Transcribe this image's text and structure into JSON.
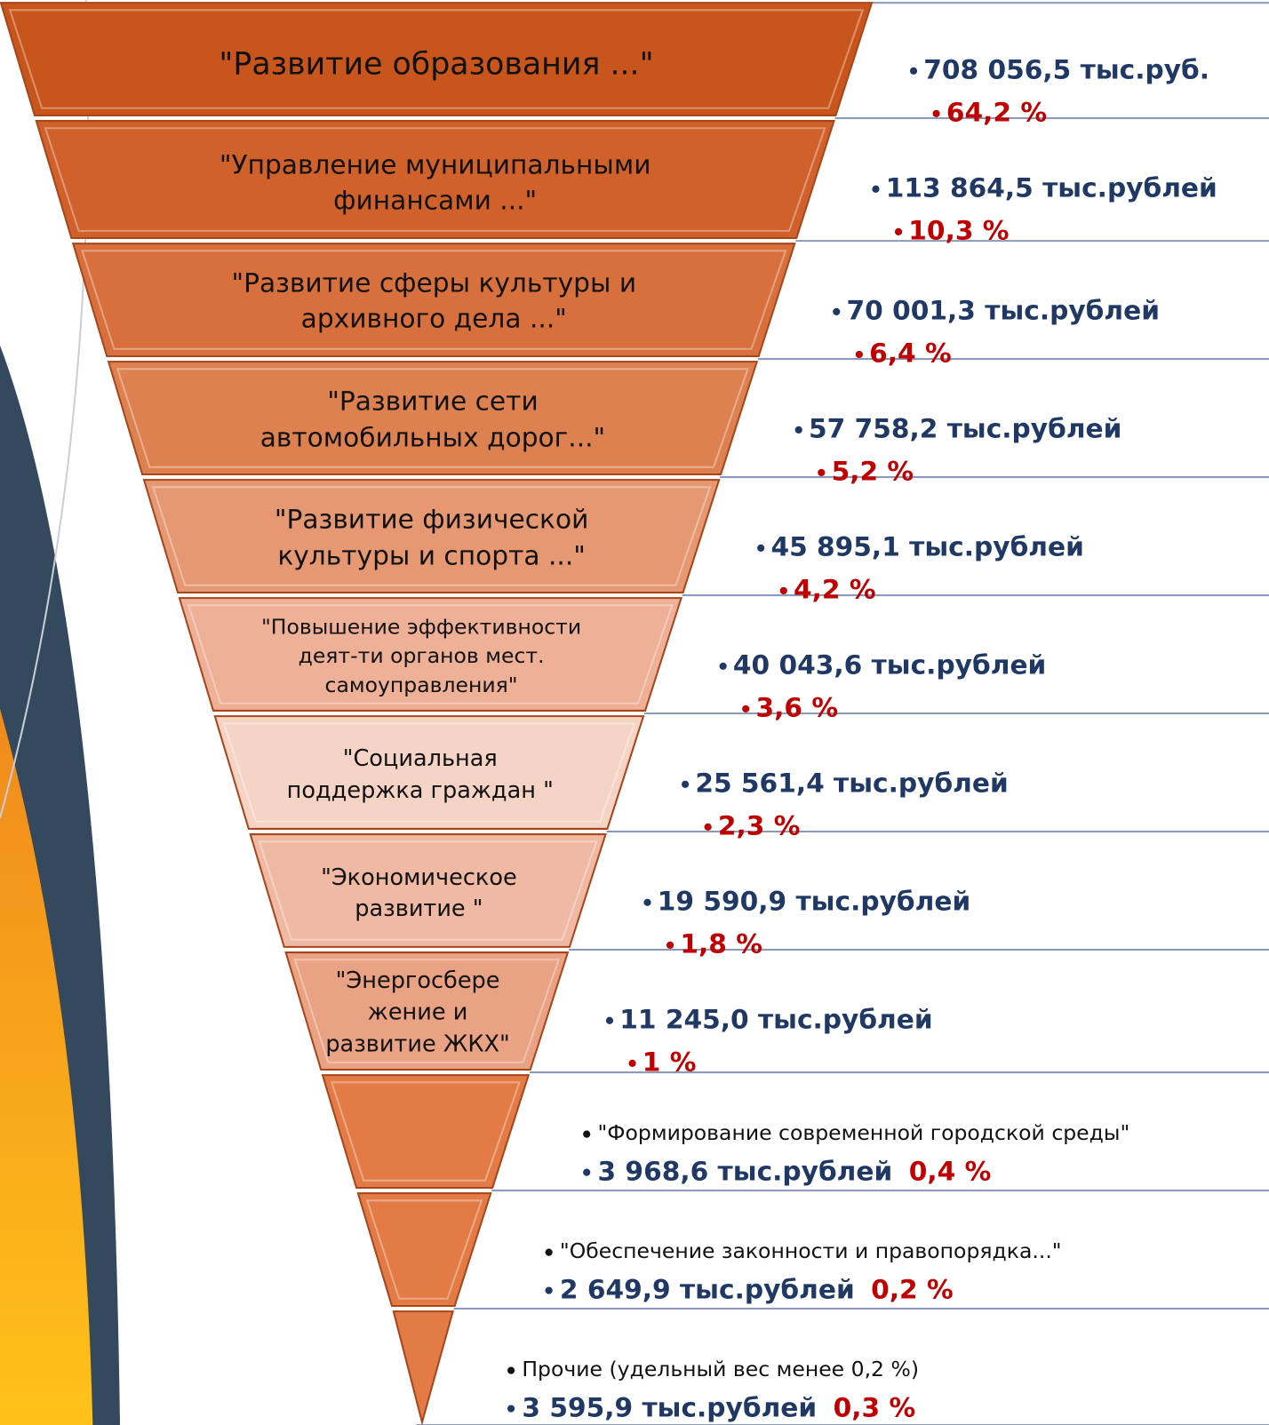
{
  "items": [
    {
      "label": [
        "\"Развитие образования ...\""
      ],
      "amount": "708 056,5 тыс.руб.",
      "percent": "64,2 %"
    },
    {
      "label": [
        "\"Управление муниципальными",
        "финансами ...\""
      ],
      "amount": "113 864,5 тыс.рублей",
      "percent": "10,3 %"
    },
    {
      "label": [
        "\"Развитие сферы культуры и",
        "архивного дела  ...\""
      ],
      "amount": "70 001,3 тыс.рублей",
      "percent": "6,4 %"
    },
    {
      "label": [
        "\"Развитие сети",
        "автомобильных дорог...\""
      ],
      "amount": "57 758,2 тыс.рублей",
      "percent": "5,2 %"
    },
    {
      "label": [
        "\"Развитие физической",
        "культуры и спорта ...\""
      ],
      "amount": "45 895,1 тыс.рублей",
      "percent": "4,2 %"
    },
    {
      "label": [
        "\"Повышение эффективности",
        "деят-ти  органов мест.",
        "самоуправления\""
      ],
      "amount": "40 043,6 тыс.рублей",
      "percent": "3,6 %"
    },
    {
      "label": [
        "\"Социальная",
        "поддержка граждан \""
      ],
      "amount": "25 561,4 тыс.рублей",
      "percent": "2,3 %"
    },
    {
      "label": [
        "\"Экономическое",
        "развитие \""
      ],
      "amount": "19 590,9 тыс.рублей",
      "percent": "1,8 %"
    },
    {
      "label": [
        "\"Энергосбере",
        "жение и",
        "развитие ЖКХ\""
      ],
      "amount": "11 245,0 тыс.рублей",
      "percent": "1 %"
    },
    {
      "label": [
        "\"Формирование современной городской среды\""
      ],
      "amount": "3 968,6 тыс.рублей",
      "percent": "0,4 %"
    },
    {
      "label": [
        "\"Обеспечение законности и правопорядка...\""
      ],
      "amount": "2 649,9 тыс.рублей",
      "percent": "0,2 %"
    },
    {
      "label": [
        "Прочие (удельный вес менее 0,2 %)"
      ],
      "amount": "3 595,9 тыс.рублей",
      "percent": "0,3 %"
    }
  ]
}
